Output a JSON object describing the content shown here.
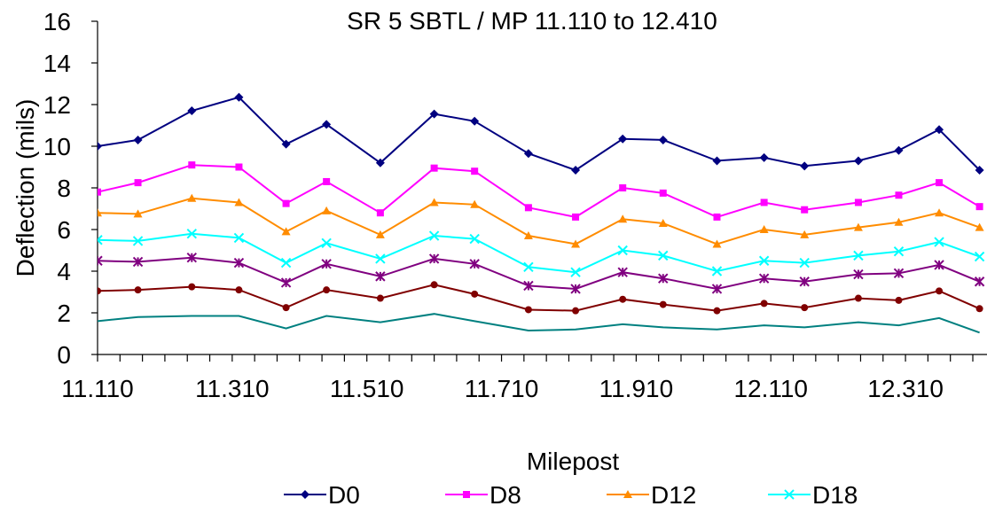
{
  "chart_data": {
    "type": "line",
    "title": "SR 5 SBTL / MP 11.110 to 12.410",
    "xlabel": "Milepost",
    "ylabel": "Deflection (mils)",
    "ylim": [
      0,
      16
    ],
    "yticks": [
      "0",
      "2",
      "4",
      "6",
      "8",
      "10",
      "12",
      "14",
      "16"
    ],
    "xlim": [
      11.11,
      12.41
    ],
    "xticks": [
      "11.110",
      "11.310",
      "11.510",
      "11.710",
      "11.910",
      "12.110",
      "12.310"
    ],
    "grid": false,
    "legend_position": "bottom",
    "x": [
      11.11,
      11.17,
      11.25,
      11.32,
      11.39,
      11.45,
      11.53,
      11.61,
      11.67,
      11.75,
      11.82,
      11.89,
      11.95,
      12.03,
      12.1,
      12.16,
      12.24,
      12.3,
      12.36,
      12.42
    ],
    "series": [
      {
        "name": "D0",
        "color": "#000080",
        "marker": "diamond",
        "values": [
          10.0,
          10.3,
          11.7,
          12.35,
          10.1,
          11.05,
          9.2,
          11.55,
          11.2,
          9.65,
          8.85,
          10.35,
          10.3,
          9.3,
          9.45,
          9.05,
          9.3,
          9.8,
          10.8,
          8.85
        ]
      },
      {
        "name": "D8",
        "color": "#FF00FF",
        "marker": "square",
        "values": [
          7.8,
          8.25,
          9.1,
          9.0,
          7.25,
          8.3,
          6.8,
          8.95,
          8.8,
          7.05,
          6.6,
          8.0,
          7.75,
          6.6,
          7.3,
          6.95,
          7.3,
          7.65,
          8.25,
          7.1
        ]
      },
      {
        "name": "D12",
        "color": "#FF8C00",
        "marker": "triangle",
        "values": [
          6.8,
          6.75,
          7.5,
          7.3,
          5.9,
          6.9,
          5.75,
          7.3,
          7.2,
          5.7,
          5.3,
          6.5,
          6.3,
          5.3,
          6.0,
          5.75,
          6.1,
          6.35,
          6.8,
          6.1
        ]
      },
      {
        "name": "D18",
        "color": "#00FFFF",
        "marker": "x",
        "values": [
          5.5,
          5.45,
          5.8,
          5.6,
          4.4,
          5.35,
          4.6,
          5.7,
          5.55,
          4.2,
          3.95,
          5.0,
          4.75,
          4.0,
          4.5,
          4.4,
          4.75,
          4.95,
          5.4,
          4.7
        ]
      },
      {
        "color": "#800080",
        "marker": "star",
        "values": [
          4.5,
          4.45,
          4.65,
          4.4,
          3.45,
          4.35,
          3.75,
          4.6,
          4.35,
          3.3,
          3.15,
          3.95,
          3.65,
          3.15,
          3.65,
          3.5,
          3.85,
          3.9,
          4.3,
          3.5
        ]
      },
      {
        "color": "#800000",
        "marker": "circle",
        "values": [
          3.05,
          3.1,
          3.25,
          3.1,
          2.25,
          3.1,
          2.7,
          3.35,
          2.9,
          2.15,
          2.1,
          2.65,
          2.4,
          2.1,
          2.45,
          2.25,
          2.7,
          2.6,
          3.05,
          2.2
        ]
      },
      {
        "color": "#008080",
        "marker": "none",
        "values": [
          1.6,
          1.8,
          1.85,
          1.85,
          1.25,
          1.85,
          1.55,
          1.95,
          1.6,
          1.15,
          1.2,
          1.45,
          1.3,
          1.2,
          1.4,
          1.3,
          1.55,
          1.4,
          1.75,
          1.05
        ]
      }
    ]
  }
}
